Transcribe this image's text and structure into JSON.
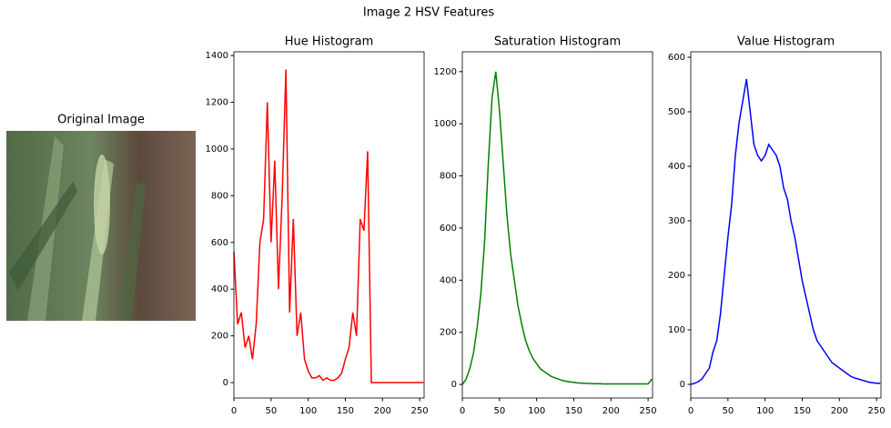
{
  "title": "Image 2 HSV Features",
  "image": {
    "title": "Original Image"
  },
  "chart_data": [
    {
      "type": "line",
      "title": "Hue Histogram",
      "color": "#ff0000",
      "x": [
        0,
        5,
        10,
        15,
        20,
        25,
        30,
        35,
        40,
        45,
        50,
        55,
        60,
        65,
        70,
        75,
        80,
        85,
        90,
        95,
        100,
        105,
        110,
        115,
        120,
        125,
        130,
        135,
        140,
        145,
        150,
        155,
        160,
        165,
        170,
        175,
        180,
        185,
        190,
        195,
        200,
        205,
        210,
        215,
        220,
        225,
        230,
        235,
        240,
        245,
        250,
        255
      ],
      "values": [
        560,
        250,
        300,
        150,
        200,
        100,
        250,
        600,
        700,
        1200,
        600,
        950,
        400,
        800,
        1340,
        300,
        700,
        200,
        300,
        100,
        50,
        20,
        20,
        30,
        10,
        20,
        10,
        10,
        20,
        40,
        100,
        150,
        300,
        200,
        700,
        650,
        990,
        0,
        0,
        0,
        0,
        0,
        0,
        0,
        0,
        0,
        0,
        0,
        0,
        0,
        0,
        0
      ],
      "xlim": [
        0,
        256
      ],
      "ylim": [
        -66,
        1416
      ],
      "xticks": [
        0,
        50,
        100,
        150,
        200,
        250
      ],
      "yticks": [
        0,
        200,
        400,
        600,
        800,
        1000,
        1200,
        1400
      ]
    },
    {
      "type": "line",
      "title": "Saturation Histogram",
      "color": "#008000",
      "x": [
        0,
        5,
        10,
        15,
        20,
        25,
        30,
        35,
        40,
        45,
        50,
        55,
        60,
        65,
        70,
        75,
        80,
        85,
        90,
        95,
        100,
        105,
        110,
        115,
        120,
        125,
        130,
        135,
        140,
        145,
        150,
        155,
        160,
        165,
        170,
        175,
        180,
        185,
        190,
        195,
        200,
        205,
        210,
        215,
        220,
        225,
        230,
        235,
        240,
        245,
        250,
        255
      ],
      "values": [
        0,
        20,
        60,
        120,
        220,
        350,
        550,
        850,
        1100,
        1200,
        1050,
        850,
        650,
        500,
        400,
        300,
        230,
        170,
        130,
        100,
        80,
        60,
        50,
        40,
        30,
        25,
        20,
        15,
        12,
        10,
        8,
        6,
        5,
        4,
        4,
        3,
        3,
        3,
        2,
        2,
        2,
        2,
        2,
        2,
        2,
        2,
        2,
        2,
        2,
        2,
        2,
        20
      ],
      "xlim": [
        0,
        256
      ],
      "ylim": [
        -52,
        1276
      ],
      "xticks": [
        0,
        50,
        100,
        150,
        200,
        250
      ],
      "yticks": [
        0,
        200,
        400,
        600,
        800,
        1000,
        1200
      ]
    },
    {
      "type": "line",
      "title": "Value Histogram",
      "color": "#0000ff",
      "x": [
        0,
        5,
        10,
        15,
        20,
        25,
        30,
        35,
        40,
        45,
        50,
        55,
        60,
        65,
        70,
        75,
        80,
        85,
        90,
        95,
        100,
        105,
        110,
        115,
        120,
        125,
        130,
        135,
        140,
        145,
        150,
        155,
        160,
        165,
        170,
        175,
        180,
        185,
        190,
        195,
        200,
        205,
        210,
        215,
        220,
        225,
        230,
        235,
        240,
        245,
        250,
        255
      ],
      "values": [
        0,
        2,
        5,
        10,
        20,
        30,
        60,
        80,
        130,
        200,
        270,
        330,
        420,
        480,
        520,
        560,
        500,
        440,
        420,
        410,
        420,
        440,
        430,
        420,
        400,
        360,
        340,
        300,
        270,
        230,
        190,
        160,
        130,
        100,
        80,
        70,
        60,
        50,
        40,
        35,
        30,
        25,
        20,
        15,
        12,
        10,
        8,
        6,
        4,
        3,
        2,
        2
      ],
      "xlim": [
        0,
        256
      ],
      "ylim": [
        -25,
        610
      ],
      "xticks": [
        0,
        50,
        100,
        150,
        200,
        250
      ],
      "yticks": [
        0,
        100,
        200,
        300,
        400,
        500,
        600
      ]
    }
  ]
}
